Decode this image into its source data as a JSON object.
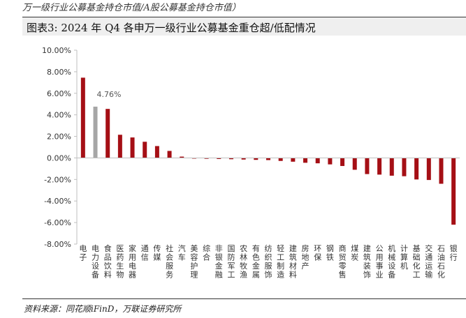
{
  "header": {
    "top_note": "万一级行业公募基金持仓市值/A股公募基金持仓市值）",
    "title": "图表3:  2024 年 Q4 各申万一级行业公募基金重仓超/低配情况"
  },
  "footer": {
    "source": "资料来源：同花顺iFinD，万联证券研究所"
  },
  "chart_data": {
    "type": "bar",
    "categories": [
      "电子",
      "电力设备",
      "食品饮料",
      "医药生物",
      "家用电器",
      "通信",
      "传媒",
      "社会服务",
      "汽车",
      "美容护理",
      "综合",
      "非银金融",
      "国防军工",
      "农林牧渔",
      "有色金属",
      "纺织服饰",
      "轻工制造",
      "建筑材料",
      "房地产",
      "环保",
      "钢铁",
      "商贸零售",
      "煤炭",
      "建筑装饰",
      "公用事业",
      "机械设备",
      "计算机",
      "基础化工",
      "交通运输",
      "石油石化",
      "银行"
    ],
    "values": [
      7.45,
      4.76,
      4.55,
      2.15,
      1.9,
      1.5,
      1.1,
      0.65,
      0.12,
      -0.05,
      -0.08,
      -0.1,
      -0.12,
      -0.15,
      -0.18,
      -0.2,
      -0.28,
      -0.35,
      -0.45,
      -0.5,
      -0.6,
      -0.75,
      -1.1,
      -1.5,
      -1.55,
      -1.65,
      -1.7,
      -2.0,
      -2.05,
      -2.4,
      -6.2
    ],
    "highlight_index": 1,
    "highlight_label": "4.76%",
    "colors": {
      "bar": "#a50f15",
      "highlight": "#a6a6a6",
      "axis": "#bfbfbf"
    },
    "ylim": [
      -8,
      10
    ],
    "yticks": [
      "10.00%",
      "8.00%",
      "6.00%",
      "4.00%",
      "2.00%",
      "0.00%",
      "-2.00%",
      "-4.00%",
      "-6.00%",
      "-8.00%"
    ],
    "ytick_values": [
      10,
      8,
      6,
      4,
      2,
      0,
      -2,
      -4,
      -6,
      -8
    ],
    "grid": false
  }
}
